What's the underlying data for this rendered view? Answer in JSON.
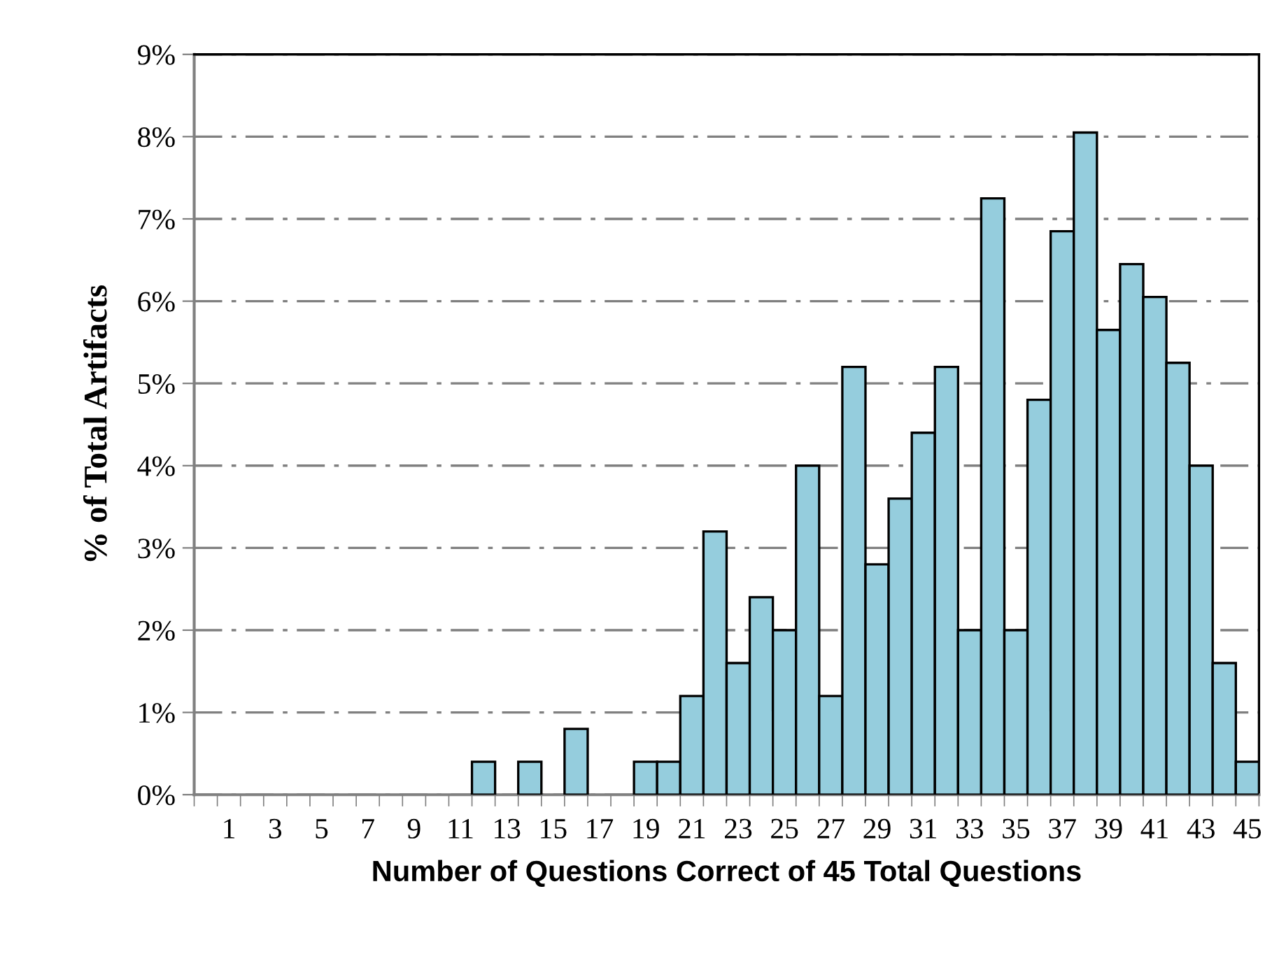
{
  "chart_data": {
    "type": "bar",
    "xlabel": "Number of Questions Correct of 45 Total Questions",
    "ylabel": "% of Total Artifacts",
    "categories": [
      null,
      "1",
      null,
      "3",
      null,
      "5",
      null,
      "7",
      null,
      "9",
      null,
      "11",
      null,
      "13",
      null,
      "15",
      null,
      "17",
      null,
      "19",
      null,
      "21",
      null,
      "23",
      null,
      "25",
      null,
      "27",
      null,
      "29",
      null,
      "31",
      null,
      "33",
      null,
      "35",
      null,
      "37",
      null,
      "39",
      null,
      "41",
      null,
      "43",
      null,
      "45"
    ],
    "series": [
      {
        "color": "#95cddd",
        "values": [
          0,
          0,
          0,
          0,
          0,
          0,
          0,
          0,
          0,
          0,
          0,
          0,
          0.4,
          0,
          0.4,
          0,
          0.8,
          0,
          0,
          0.4,
          0.4,
          1.2,
          3.2,
          1.6,
          2.4,
          2.0,
          4.0,
          1.2,
          5.2,
          2.8,
          3.6,
          4.4,
          5.2,
          2.0,
          7.25,
          2.0,
          4.8,
          6.85,
          8.05,
          5.65,
          6.45,
          6.05,
          5.25,
          4.0,
          1.6,
          0.4
        ]
      }
    ],
    "ylim": [
      0,
      9
    ],
    "yticks": [
      {
        "value": 0,
        "label": "0%"
      },
      {
        "value": 1,
        "label": "1%"
      },
      {
        "value": 2,
        "label": "2%"
      },
      {
        "value": 3,
        "label": "3%"
      },
      {
        "value": 4,
        "label": "4%"
      },
      {
        "value": 5,
        "label": "5%"
      },
      {
        "value": 6,
        "label": "6%"
      },
      {
        "value": 7,
        "label": "7%"
      },
      {
        "value": 8,
        "label": "8%"
      },
      {
        "value": 9,
        "label": "9%"
      }
    ],
    "grid": "y"
  }
}
